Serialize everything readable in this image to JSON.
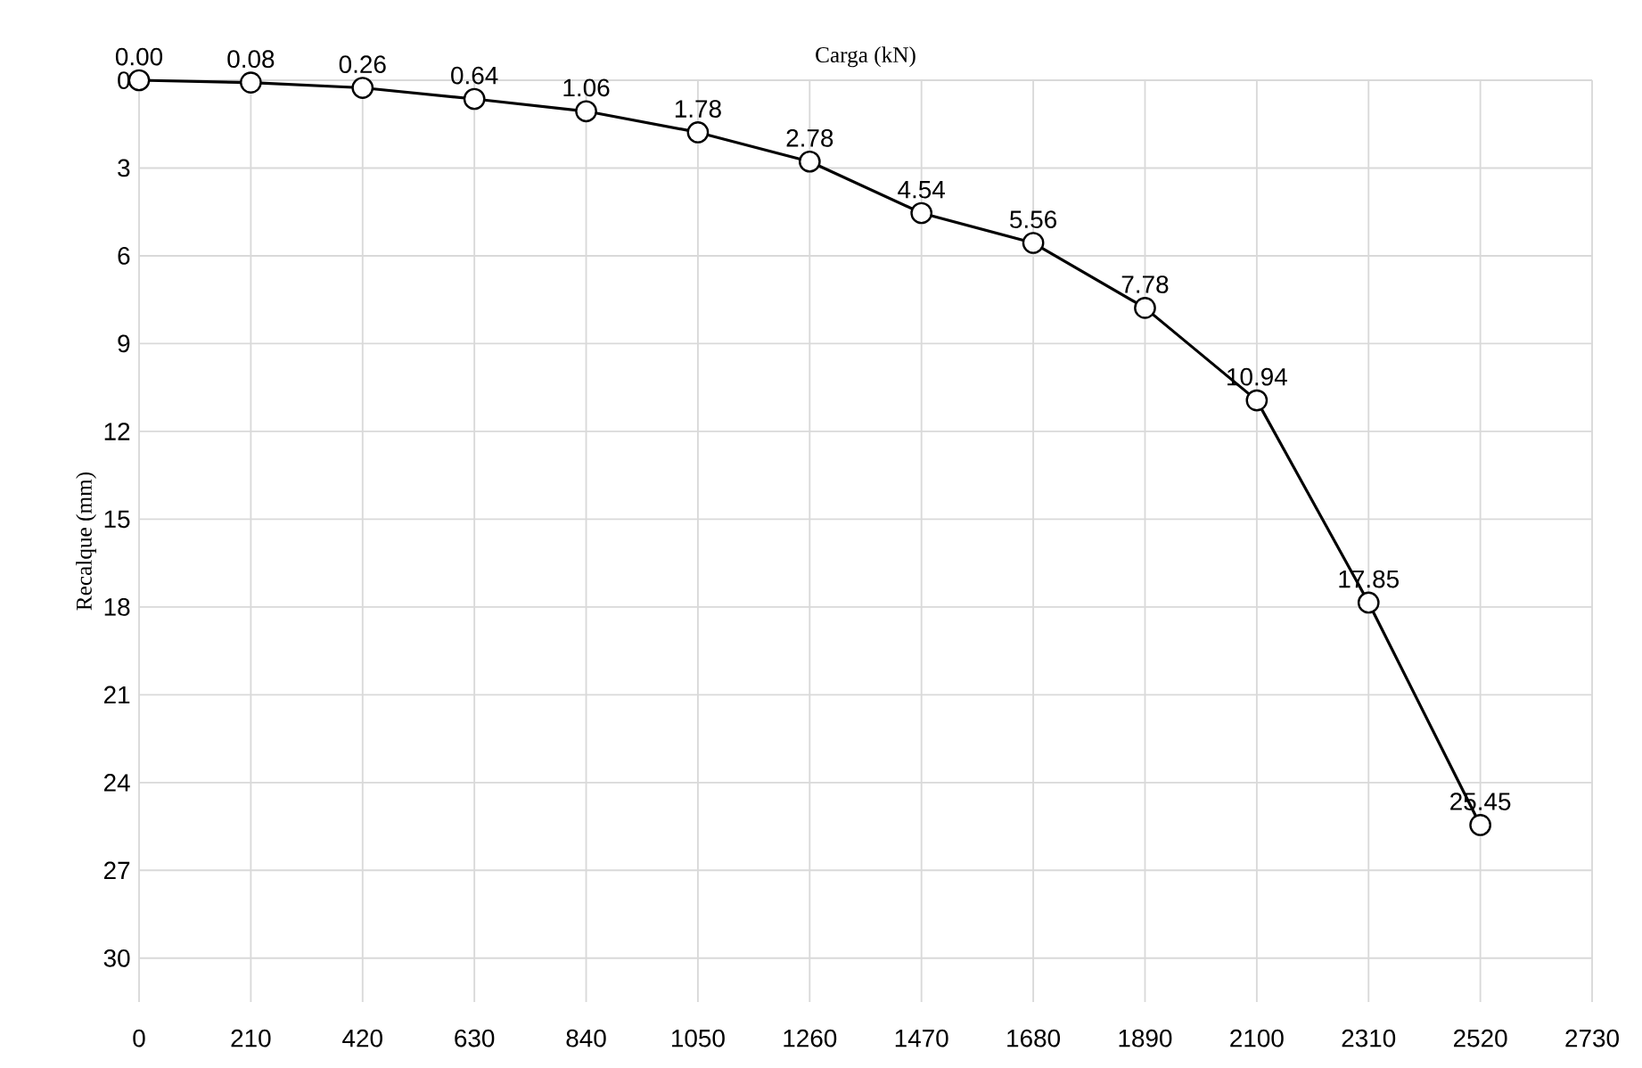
{
  "chart_data": {
    "type": "line",
    "xlabel": "Carga (kN)",
    "ylabel": "Recalque (mm)",
    "x": [
      0,
      210,
      420,
      630,
      840,
      1050,
      1260,
      1470,
      1680,
      1890,
      2100,
      2310,
      2520
    ],
    "series": [
      {
        "color": "#000000",
        "values": [
          0.0,
          0.08,
          0.26,
          0.64,
          1.06,
          1.78,
          2.78,
          4.54,
          5.56,
          7.78,
          10.94,
          17.85,
          25.45
        ],
        "value_labels": [
          "0.00",
          "0.08",
          "0.26",
          "0.64",
          "1.06",
          "1.78",
          "2.78",
          "4.54",
          "5.56",
          "7.78",
          "10.94",
          "17.85",
          "25.45"
        ]
      }
    ],
    "xlim": [
      0,
      2730
    ],
    "ylim": [
      31.5,
      0
    ],
    "xticks": [
      0,
      210,
      420,
      630,
      840,
      1050,
      1260,
      1470,
      1680,
      1890,
      2100,
      2310,
      2520,
      2730
    ],
    "yticks": [
      0,
      3,
      6,
      9,
      12,
      15,
      18,
      21,
      24,
      27,
      30
    ],
    "grid": true,
    "marker": "circle",
    "line_style": "solid"
  }
}
